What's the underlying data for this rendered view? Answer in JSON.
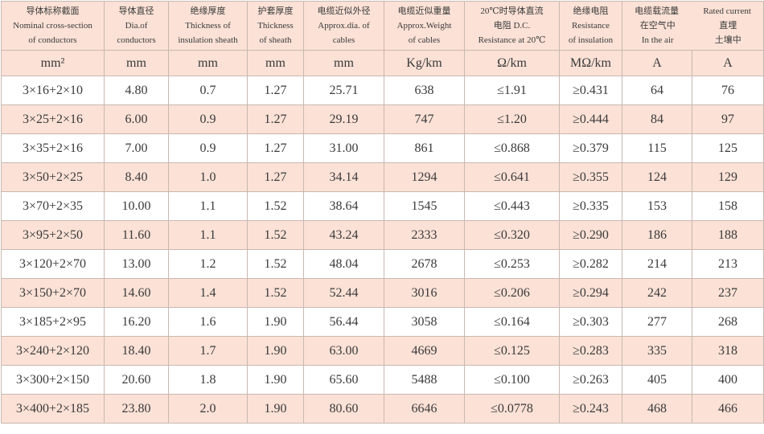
{
  "headers": [
    {
      "zh": "导体标称截面",
      "en1": "Nominal cross-section",
      "en2": "of conductors"
    },
    {
      "zh": "导体直径",
      "en1": "Dia.of",
      "en2": "conductors"
    },
    {
      "zh": "绝缘厚度",
      "en1": "Thickness of",
      "en2": "insulation sheath"
    },
    {
      "zh": "护套厚度",
      "en1": "Thickness",
      "en2": "of sheath"
    },
    {
      "zh": "电缆近似外径",
      "en1": "Approx.dia. of",
      "en2": "cables"
    },
    {
      "zh": "电缆近似重量",
      "en1": "Approx.Weight",
      "en2": "of cables"
    },
    {
      "zh": "20℃时导体直流",
      "en1": "电阻 D.C.",
      "en2": "Resistance at 20℃"
    },
    {
      "zh": "绝缘电阻",
      "en1": "Resistance",
      "en2": "of insulation"
    }
  ],
  "rated": {
    "zh": "电缆载流量",
    "en": "Rated current",
    "air_zh": "在空气中",
    "air_en": "In the air",
    "soil_zh": "直埋",
    "soil_zh2": "土壤中"
  },
  "units": [
    "mm²",
    "mm",
    "mm",
    "mm",
    "mm",
    "Kg/km",
    "Ω/km",
    "MΩ/km",
    "A",
    "A"
  ],
  "rows": [
    [
      "3×16+2×10",
      "4.80",
      "0.7",
      "1.27",
      "25.71",
      "638",
      "≤1.91",
      "≥0.431",
      "64",
      "76"
    ],
    [
      "3×25+2×16",
      "6.00",
      "0.9",
      "1.27",
      "29.19",
      "747",
      "≤1.20",
      "≥0.444",
      "84",
      "97"
    ],
    [
      "3×35+2×16",
      "7.00",
      "0.9",
      "1.27",
      "31.00",
      "861",
      "≤0.868",
      "≥0.379",
      "115",
      "125"
    ],
    [
      "3×50+2×25",
      "8.40",
      "1.0",
      "1.27",
      "34.14",
      "1294",
      "≤0.641",
      "≥0.355",
      "124",
      "129"
    ],
    [
      "3×70+2×35",
      "10.00",
      "1.1",
      "1.52",
      "38.64",
      "1545",
      "≤0.443",
      "≥0.335",
      "153",
      "158"
    ],
    [
      "3×95+2×50",
      "11.60",
      "1.1",
      "1.52",
      "43.24",
      "2333",
      "≤0.320",
      "≥0.290",
      "186",
      "188"
    ],
    [
      "3×120+2×70",
      "13.00",
      "1.2",
      "1.52",
      "48.04",
      "2678",
      "≤0.253",
      "≥0.282",
      "214",
      "213"
    ],
    [
      "3×150+2×70",
      "14.60",
      "1.4",
      "1.52",
      "52.44",
      "3016",
      "≤0.206",
      "≥0.294",
      "242",
      "237"
    ],
    [
      "3×185+2×95",
      "16.20",
      "1.6",
      "1.90",
      "56.44",
      "3058",
      "≤0.164",
      "≥0.303",
      "277",
      "268"
    ],
    [
      "3×240+2×120",
      "18.40",
      "1.7",
      "1.90",
      "63.00",
      "4669",
      "≤0.125",
      "≥0.283",
      "335",
      "318"
    ],
    [
      "3×300+2×150",
      "20.60",
      "1.8",
      "1.90",
      "65.60",
      "5488",
      "≤0.100",
      "≥0.263",
      "405",
      "400"
    ],
    [
      "3×400+2×185",
      "23.80",
      "2.0",
      "1.90",
      "80.60",
      "6646",
      "≤0.0778",
      "≥0.243",
      "468",
      "466"
    ]
  ]
}
